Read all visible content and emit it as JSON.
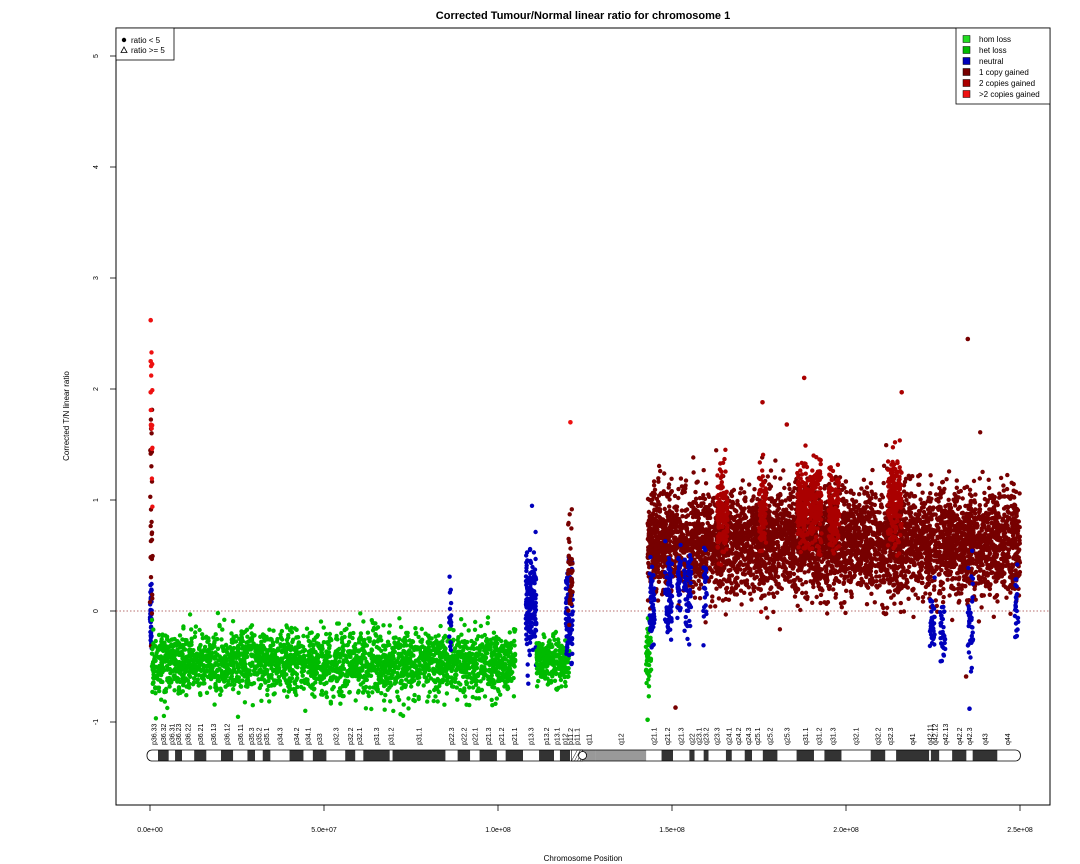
{
  "chart_data": {
    "type": "scatter",
    "title": "Corrected Tumour/Normal linear ratio for chromosome  1",
    "xlabel": "Chromosome Position",
    "ylabel": "Corrected T/N linear ratio",
    "xlim": [
      0,
      250000000
    ],
    "ylim": [
      -1.8,
      5.3
    ],
    "x_ticks": [
      0,
      50000000,
      100000000,
      150000000,
      200000000,
      250000000
    ],
    "x_tick_labels": [
      "0.0e+00",
      "5.0e+07",
      "1.0e+08",
      "1.5e+08",
      "2.0e+08",
      "2.5e+08"
    ],
    "y_ticks": [
      -1,
      0,
      1,
      2,
      3,
      4,
      5
    ],
    "y_tick_labels": [
      "-1",
      "0",
      "1",
      "2",
      "3",
      "4",
      "5"
    ],
    "reference_line": {
      "y": 0,
      "style": "dotted",
      "color": "#a04040"
    },
    "grid": false,
    "shape_legend": {
      "placement": "top-left",
      "entries": [
        {
          "label": "ratio < 5",
          "symbol": "dot"
        },
        {
          "label": "ratio >= 5",
          "symbol": "triangle"
        }
      ]
    },
    "color_legend": {
      "placement": "top-right",
      "entries": [
        {
          "label": "hom loss",
          "color": "#22dd22"
        },
        {
          "label": "het loss",
          "color": "#00bb00"
        },
        {
          "label": "neutral",
          "color": "#0000bb"
        },
        {
          "label": "1 copy gained",
          "color": "#770000"
        },
        {
          "label": "2 copies gained",
          "color": "#aa0000"
        },
        {
          "label": ">2 copies gained",
          "color": "#ee1111"
        }
      ]
    },
    "segments": [
      {
        "x": [
          0,
          500000
        ],
        "center": 0.0,
        "spread": 0.45,
        "count": 40,
        "state": "neutral"
      },
      {
        "x": [
          0,
          800000
        ],
        "center": 0.9,
        "spread": 1.2,
        "count": 30,
        "state": "1 copy gained"
      },
      {
        "x": [
          100000,
          700000
        ],
        "center": 1.7,
        "spread": 0.8,
        "count": 14,
        "state": ">2 copies gained"
      },
      {
        "x": [
          500000,
          105000000
        ],
        "center": -0.47,
        "spread": 0.34,
        "count": 2600,
        "state": "het loss"
      },
      {
        "x": [
          86000000,
          86600000
        ],
        "center": -0.1,
        "spread": 0.4,
        "count": 20,
        "state": "neutral"
      },
      {
        "x": [
          108000000,
          111000000
        ],
        "center": 0.05,
        "spread": 0.6,
        "count": 160,
        "state": "neutral"
      },
      {
        "x": [
          111000000,
          120500000
        ],
        "center": -0.45,
        "spread": 0.25,
        "count": 260,
        "state": "het loss"
      },
      {
        "x": [
          119500000,
          121500000
        ],
        "center": -0.05,
        "spread": 0.55,
        "count": 90,
        "state": "neutral"
      },
      {
        "x": [
          120000000,
          121500000
        ],
        "center": 0.35,
        "spread": 0.6,
        "count": 40,
        "state": "1 copy gained"
      },
      {
        "x": [
          142500000,
          144000000
        ],
        "center": -0.4,
        "spread": 0.45,
        "count": 50,
        "state": "het loss"
      },
      {
        "x": [
          143000000,
          250000000
        ],
        "center": 0.62,
        "spread": 0.55,
        "count": 5200,
        "state": "1 copy gained"
      },
      {
        "x": [
          163000000,
          166000000
        ],
        "center": 0.9,
        "spread": 0.45,
        "count": 140,
        "state": "2 copies gained"
      },
      {
        "x": [
          175000000,
          177000000
        ],
        "center": 0.9,
        "spread": 0.45,
        "count": 90,
        "state": "2 copies gained"
      },
      {
        "x": [
          186000000,
          193000000
        ],
        "center": 0.95,
        "spread": 0.45,
        "count": 320,
        "state": "2 copies gained"
      },
      {
        "x": [
          195000000,
          198000000
        ],
        "center": 0.9,
        "spread": 0.45,
        "count": 140,
        "state": "2 copies gained"
      },
      {
        "x": [
          212000000,
          216000000
        ],
        "center": 1.0,
        "spread": 0.45,
        "count": 180,
        "state": "2 copies gained"
      },
      {
        "x": [
          143500000,
          145000000
        ],
        "center": 0.0,
        "spread": 0.45,
        "count": 60,
        "state": "neutral"
      },
      {
        "x": [
          148000000,
          150000000
        ],
        "center": 0.1,
        "spread": 0.5,
        "count": 70,
        "state": "neutral"
      },
      {
        "x": [
          151500000,
          152500000
        ],
        "center": 0.3,
        "spread": 0.45,
        "count": 40,
        "state": "neutral"
      },
      {
        "x": [
          153500000,
          155500000
        ],
        "center": 0.2,
        "spread": 0.45,
        "count": 60,
        "state": "neutral"
      },
      {
        "x": [
          159000000,
          160000000
        ],
        "center": 0.2,
        "spread": 0.5,
        "count": 30,
        "state": "neutral"
      },
      {
        "x": [
          224000000,
          225500000
        ],
        "center": -0.1,
        "spread": 0.35,
        "count": 40,
        "state": "neutral"
      },
      {
        "x": [
          227000000,
          228500000
        ],
        "center": -0.2,
        "spread": 0.3,
        "count": 35,
        "state": "neutral"
      },
      {
        "x": [
          235000000,
          236500000
        ],
        "center": -0.1,
        "spread": 0.4,
        "count": 35,
        "state": "neutral"
      },
      {
        "x": [
          248500000,
          249500000
        ],
        "center": 0.0,
        "spread": 0.4,
        "count": 25,
        "state": "neutral"
      }
    ],
    "outliers": [
      {
        "x": 200000,
        "y": 2.62,
        "state": ">2 copies gained"
      },
      {
        "x": 200000,
        "y": 2.25,
        "state": ">2 copies gained"
      },
      {
        "x": 200000,
        "y": 1.97,
        "state": ">2 copies gained"
      },
      {
        "x": 120800000,
        "y": 1.7,
        "state": ">2 copies gained"
      },
      {
        "x": 235000000,
        "y": 2.45,
        "state": "1 copy gained"
      },
      {
        "x": 188000000,
        "y": 2.1,
        "state": "2 copies gained"
      },
      {
        "x": 216000000,
        "y": 1.97,
        "state": "2 copies gained"
      },
      {
        "x": 176000000,
        "y": 1.88,
        "state": "2 copies gained"
      },
      {
        "x": 183000000,
        "y": 1.68,
        "state": "2 copies gained"
      },
      {
        "x": 72000000,
        "y": -0.93,
        "state": "het loss"
      },
      {
        "x": 143000000,
        "y": -0.98,
        "state": "het loss"
      },
      {
        "x": 151000000,
        "y": -0.87,
        "state": "1 copy gained"
      },
      {
        "x": 234500000,
        "y": -0.59,
        "state": "1 copy gained"
      },
      {
        "x": 235500000,
        "y": -0.88,
        "state": "neutral"
      }
    ],
    "ideogram": {
      "bands": [
        {
          "name": "p36.33",
          "start": 0,
          "end": 2300000,
          "stain": "gneg"
        },
        {
          "name": "p36.32",
          "start": 2300000,
          "end": 5400000,
          "stain": "gpos25"
        },
        {
          "name": "p36.31",
          "start": 5400000,
          "end": 7200000,
          "stain": "gneg"
        },
        {
          "name": "p36.23",
          "start": 7200000,
          "end": 9200000,
          "stain": "gpos25"
        },
        {
          "name": "p36.22",
          "start": 9200000,
          "end": 12700000,
          "stain": "gneg"
        },
        {
          "name": "p36.21",
          "start": 12700000,
          "end": 16200000,
          "stain": "gpos50"
        },
        {
          "name": "p36.13",
          "start": 16200000,
          "end": 20400000,
          "stain": "gneg"
        },
        {
          "name": "p36.12",
          "start": 20400000,
          "end": 23900000,
          "stain": "gpos25"
        },
        {
          "name": "p36.11",
          "start": 23900000,
          "end": 28000000,
          "stain": "gneg"
        },
        {
          "name": "p35.3",
          "start": 28000000,
          "end": 30200000,
          "stain": "gpos25"
        },
        {
          "name": "p35.2",
          "start": 30200000,
          "end": 32400000,
          "stain": "gneg"
        },
        {
          "name": "p35.1",
          "start": 32400000,
          "end": 34600000,
          "stain": "gpos25"
        },
        {
          "name": "p34.3",
          "start": 34600000,
          "end": 40100000,
          "stain": "gneg"
        },
        {
          "name": "p34.2",
          "start": 40100000,
          "end": 44100000,
          "stain": "gpos25"
        },
        {
          "name": "p34.1",
          "start": 44100000,
          "end": 46800000,
          "stain": "gneg"
        },
        {
          "name": "p33",
          "start": 46800000,
          "end": 50700000,
          "stain": "gpos75"
        },
        {
          "name": "p32.3",
          "start": 50700000,
          "end": 56100000,
          "stain": "gneg"
        },
        {
          "name": "p32.2",
          "start": 56100000,
          "end": 59000000,
          "stain": "gpos50"
        },
        {
          "name": "p32.1",
          "start": 59000000,
          "end": 61300000,
          "stain": "gneg"
        },
        {
          "name": "p31.3",
          "start": 61300000,
          "end": 68900000,
          "stain": "gpos50"
        },
        {
          "name": "p31.2",
          "start": 68900000,
          "end": 69700000,
          "stain": "gneg"
        },
        {
          "name": "p31.1",
          "start": 69700000,
          "end": 84900000,
          "stain": "gpos100"
        },
        {
          "name": "p22.3",
          "start": 84900000,
          "end": 88400000,
          "stain": "gneg"
        },
        {
          "name": "p22.2",
          "start": 88400000,
          "end": 92000000,
          "stain": "gpos75"
        },
        {
          "name": "p22.1",
          "start": 92000000,
          "end": 94700000,
          "stain": "gneg"
        },
        {
          "name": "p21.3",
          "start": 94700000,
          "end": 99700000,
          "stain": "gpos75"
        },
        {
          "name": "p21.2",
          "start": 99700000,
          "end": 102200000,
          "stain": "gneg"
        },
        {
          "name": "p21.1",
          "start": 102200000,
          "end": 107200000,
          "stain": "gpos100"
        },
        {
          "name": "p13.3",
          "start": 107200000,
          "end": 111800000,
          "stain": "gneg"
        },
        {
          "name": "p13.2",
          "start": 111800000,
          "end": 116100000,
          "stain": "gpos50"
        },
        {
          "name": "p13.1",
          "start": 116100000,
          "end": 117800000,
          "stain": "gneg"
        },
        {
          "name": "p12",
          "start": 117800000,
          "end": 120700000,
          "stain": "gpos50"
        },
        {
          "name": "p11.2",
          "start": 120700000,
          "end": 121100000,
          "stain": "gneg"
        },
        {
          "name": "p11.1",
          "start": 121100000,
          "end": 124300000,
          "stain": "acen"
        },
        {
          "name": "q11",
          "start": 124300000,
          "end": 128000000,
          "stain": "gvar"
        },
        {
          "name": "q12",
          "start": 128000000,
          "end": 142600000,
          "stain": "gvar"
        },
        {
          "name": "q21.1",
          "start": 142600000,
          "end": 147000000,
          "stain": "gneg"
        },
        {
          "name": "q21.2",
          "start": 147000000,
          "end": 150300000,
          "stain": "gpos50"
        },
        {
          "name": "q21.3",
          "start": 150300000,
          "end": 155000000,
          "stain": "gneg"
        },
        {
          "name": "q22",
          "start": 155000000,
          "end": 156500000,
          "stain": "gpos50"
        },
        {
          "name": "q23.1",
          "start": 156500000,
          "end": 159100000,
          "stain": "gneg"
        },
        {
          "name": "q23.2",
          "start": 159100000,
          "end": 160500000,
          "stain": "gpos50"
        },
        {
          "name": "q23.3",
          "start": 160500000,
          "end": 165500000,
          "stain": "gneg"
        },
        {
          "name": "q24.1",
          "start": 165500000,
          "end": 167200000,
          "stain": "gpos50"
        },
        {
          "name": "q24.2",
          "start": 167200000,
          "end": 170900000,
          "stain": "gneg"
        },
        {
          "name": "q24.3",
          "start": 170900000,
          "end": 173000000,
          "stain": "gpos75"
        },
        {
          "name": "q25.1",
          "start": 173000000,
          "end": 176100000,
          "stain": "gneg"
        },
        {
          "name": "q25.2",
          "start": 176100000,
          "end": 180300000,
          "stain": "gpos50"
        },
        {
          "name": "q25.3",
          "start": 180300000,
          "end": 185800000,
          "stain": "gneg"
        },
        {
          "name": "q31.1",
          "start": 185800000,
          "end": 190800000,
          "stain": "gpos100"
        },
        {
          "name": "q31.2",
          "start": 190800000,
          "end": 193800000,
          "stain": "gneg"
        },
        {
          "name": "q31.3",
          "start": 193800000,
          "end": 198700000,
          "stain": "gpos100"
        },
        {
          "name": "q32.1",
          "start": 198700000,
          "end": 207100000,
          "stain": "gneg"
        },
        {
          "name": "q32.2",
          "start": 207100000,
          "end": 211300000,
          "stain": "gpos25"
        },
        {
          "name": "q32.3",
          "start": 211300000,
          "end": 214400000,
          "stain": "gneg"
        },
        {
          "name": "q41",
          "start": 214400000,
          "end": 223900000,
          "stain": "gpos100"
        },
        {
          "name": "q42.11",
          "start": 223900000,
          "end": 224400000,
          "stain": "gneg"
        },
        {
          "name": "q42.12",
          "start": 224400000,
          "end": 226800000,
          "stain": "gpos25"
        },
        {
          "name": "q42.13",
          "start": 226800000,
          "end": 230500000,
          "stain": "gneg"
        },
        {
          "name": "q42.2",
          "start": 230500000,
          "end": 234600000,
          "stain": "gpos50"
        },
        {
          "name": "q42.3",
          "start": 234600000,
          "end": 236400000,
          "stain": "gneg"
        },
        {
          "name": "q43",
          "start": 236400000,
          "end": 243500000,
          "stain": "gpos75"
        },
        {
          "name": "q44",
          "start": 243500000,
          "end": 249250621,
          "stain": "gneg"
        }
      ]
    }
  }
}
